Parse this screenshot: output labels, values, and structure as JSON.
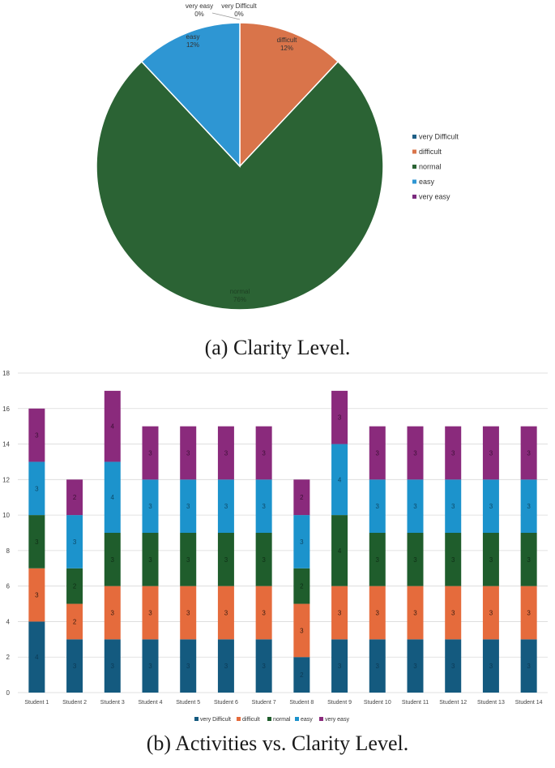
{
  "captions": {
    "a": "(a) Clarity Level.",
    "b": "(b) Activities vs. Clarity Level."
  },
  "chart_data": [
    {
      "type": "pie",
      "categories": [
        "very Difficult",
        "difficult",
        "normal",
        "easy",
        "very easy"
      ],
      "values": [
        0,
        12,
        76,
        12,
        0
      ],
      "value_labels": [
        "0%",
        "12%",
        "76%",
        "12%",
        "0%"
      ],
      "colors": [
        "#1f5f86",
        "#d9744a",
        "#2b6334",
        "#2e96d3",
        "#7b2b7e"
      ],
      "legend_position": "right"
    },
    {
      "type": "bar",
      "stacked": true,
      "categories": [
        "Student 1",
        "Student 2",
        "Student 3",
        "Student 4",
        "Student 5",
        "Student 6",
        "Student 7",
        "Student 8",
        "Student 9",
        "Student 10",
        "Student 11",
        "Student 12",
        "Student 13",
        "Student 14"
      ],
      "series": [
        {
          "name": "very Difficult",
          "color": "#145a7f",
          "values": [
            4,
            3,
            3,
            3,
            3,
            3,
            3,
            2,
            3,
            3,
            3,
            3,
            3,
            3
          ]
        },
        {
          "name": "difficult",
          "color": "#e56b3c",
          "values": [
            3,
            2,
            3,
            3,
            3,
            3,
            3,
            3,
            3,
            3,
            3,
            3,
            3,
            3
          ]
        },
        {
          "name": "normal",
          "color": "#1f5d2c",
          "values": [
            3,
            2,
            3,
            3,
            3,
            3,
            3,
            2,
            4,
            3,
            3,
            3,
            3,
            3
          ]
        },
        {
          "name": "easy",
          "color": "#1c93cc",
          "values": [
            3,
            3,
            4,
            3,
            3,
            3,
            3,
            3,
            4,
            3,
            3,
            3,
            3,
            3
          ]
        },
        {
          "name": "very easy",
          "color": "#8a2a7c",
          "values": [
            3,
            2,
            4,
            3,
            3,
            3,
            3,
            2,
            3,
            3,
            3,
            3,
            3,
            3
          ]
        }
      ],
      "ylim": [
        0,
        18
      ],
      "yticks": [
        0,
        2,
        4,
        6,
        8,
        10,
        12,
        14,
        16,
        18
      ],
      "grid": true,
      "legend_position": "bottom"
    }
  ]
}
